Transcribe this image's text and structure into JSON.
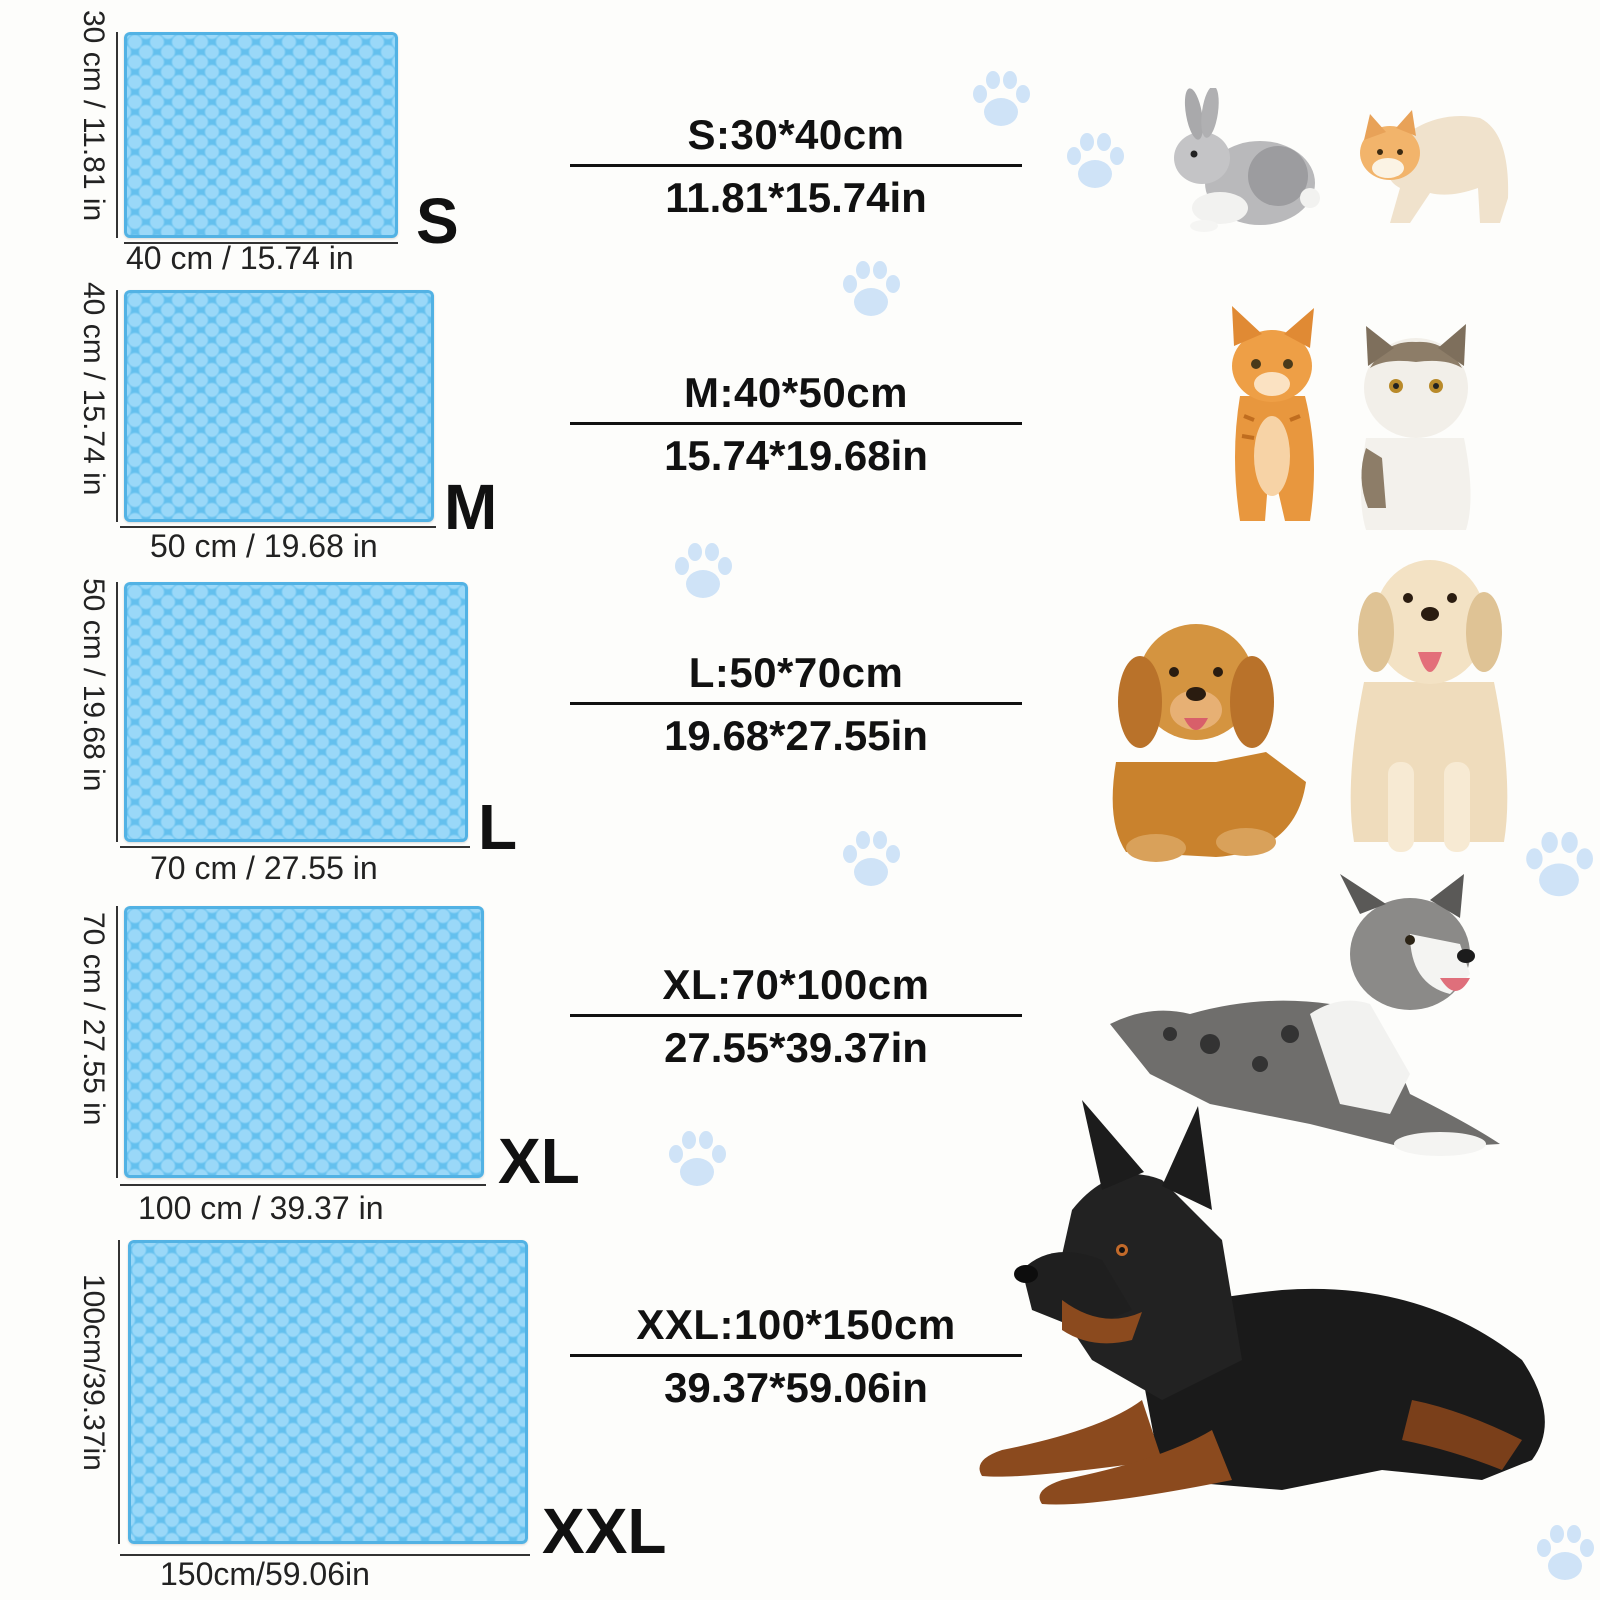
{
  "sizes": [
    {
      "letter": "S",
      "width_label": "40 cm / 15.74 in",
      "height_label": "30 cm / 11.81 in",
      "spec_cm": "S:30*40cm",
      "spec_in": "11.81*15.74in",
      "animals": [
        "rabbit",
        "cat"
      ]
    },
    {
      "letter": "M",
      "width_label": "50 cm / 19.68 in",
      "height_label": "40 cm / 15.74 in",
      "spec_cm": "M:40*50cm",
      "spec_in": "15.74*19.68in",
      "animals": [
        "orange-tabby-cat",
        "exotic-shorthair-cat"
      ]
    },
    {
      "letter": "L",
      "width_label": "70 cm / 27.55 in",
      "height_label": "50 cm / 19.68 in",
      "spec_cm": "L:50*70cm",
      "spec_in": "19.68*27.55in",
      "animals": [
        "golden-retriever-lying",
        "labrador-sitting"
      ]
    },
    {
      "letter": "XL",
      "width_label": "100 cm / 39.37 in",
      "height_label": "70 cm / 27.55 in",
      "spec_cm": "XL:70*100cm",
      "spec_in": "27.55*39.37in",
      "animals": [
        "border-collie-lying"
      ]
    },
    {
      "letter": "XXL",
      "width_label": "150cm/59.06in",
      "height_label": "100cm/39.37in",
      "spec_cm": "XXL:100*150cm",
      "spec_in": "39.37*59.06in",
      "animals": [
        "doberman-lying"
      ]
    }
  ],
  "colors": {
    "mat": "#64c0ee",
    "mat_bubble": "#9ad8f8",
    "paw": "#cfe3f7",
    "background": "#fdfdfb"
  },
  "icons": [
    "paw-print-icon"
  ]
}
